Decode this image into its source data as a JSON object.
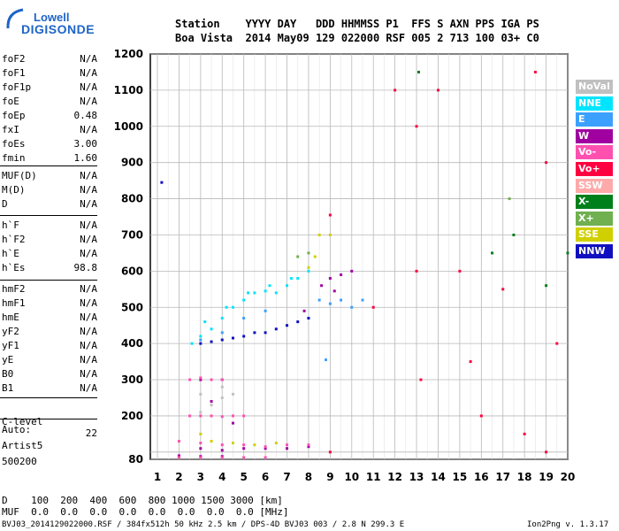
{
  "logo": {
    "line1": "Lowell",
    "line2": "DIGISONDE"
  },
  "header": {
    "row1": "Station    YYYY DAY   DDD HHMMSS P1  FFS S AXN PPS IGA PS",
    "row2": "Boa Vista  2014 May09 129 022000 RSF 005 2 713 100 03+ C0"
  },
  "params_group1": [
    {
      "name": "foF2",
      "value": "N/A"
    },
    {
      "name": "foF1",
      "value": "N/A"
    },
    {
      "name": "foF1p",
      "value": "N/A"
    },
    {
      "name": "foE",
      "value": "N/A"
    },
    {
      "name": "foEp",
      "value": "0.48"
    },
    {
      "name": "fxI",
      "value": "N/A"
    },
    {
      "name": "foEs",
      "value": "3.00"
    },
    {
      "name": "fmin",
      "value": "1.60"
    }
  ],
  "params_group2": [
    {
      "name": "MUF(D)",
      "value": "N/A"
    },
    {
      "name": "M(D)",
      "value": "N/A"
    },
    {
      "name": "D",
      "value": "N/A"
    }
  ],
  "params_group3": [
    {
      "name": "h`F",
      "value": "N/A"
    },
    {
      "name": "h`F2",
      "value": "N/A"
    },
    {
      "name": "h`E",
      "value": "N/A"
    },
    {
      "name": "h`Es",
      "value": "98.8"
    }
  ],
  "params_group4": [
    {
      "name": "hmF2",
      "value": "N/A"
    },
    {
      "name": "hmF1",
      "value": "N/A"
    },
    {
      "name": "hmE",
      "value": "N/A"
    },
    {
      "name": "yF2",
      "value": "N/A"
    },
    {
      "name": "yF1",
      "value": "N/A"
    },
    {
      "name": "yE",
      "value": "N/A"
    },
    {
      "name": "B0",
      "value": "N/A"
    },
    {
      "name": "B1",
      "value": "N/A"
    }
  ],
  "clevel": {
    "name": "C-level",
    "value": "22"
  },
  "auto": {
    "line1": "Auto:",
    "line2": "Artist5",
    "line3": "500200"
  },
  "legend": [
    {
      "label": "NoVal",
      "color": "#c0c0c0"
    },
    {
      "label": "NNE",
      "color": "#00e5ff"
    },
    {
      "label": "E",
      "color": "#3ca0ff"
    },
    {
      "label": "W",
      "color": "#a000a0"
    },
    {
      "label": "Vo-",
      "color": "#ff50b0"
    },
    {
      "label": "Vo+",
      "color": "#ff0040"
    },
    {
      "label": "SSW",
      "color": "#ffaaaa"
    },
    {
      "label": "X-",
      "color": "#00801a"
    },
    {
      "label": "X+",
      "color": "#70b050"
    },
    {
      "label": "SSE",
      "color": "#d0d000"
    },
    {
      "label": "NNW",
      "color": "#1010c0"
    }
  ],
  "muf_table": {
    "row1": "D    100  200  400  600  800 1000 1500 3000 [km]",
    "row2": "MUF  0.0  0.0  0.0  0.0  0.0  0.0  0.0  0.0 [MHz]"
  },
  "footer": {
    "left": "BVJ03_2014129022000.RSF / 384fx512h 50 kHz 2.5 km / DPS-4D BVJ03 003 / 2.8 N 299.3 E",
    "right": "Ion2Png v. 1.3.17"
  },
  "chart_data": {
    "type": "scatter",
    "title": "",
    "xlabel": "",
    "ylabel": "",
    "xlim": [
      1,
      20
    ],
    "ylim": [
      80,
      1200
    ],
    "x_ticks": [
      1,
      2,
      3,
      4,
      5,
      6,
      7,
      8,
      9,
      10,
      11,
      12,
      13,
      14,
      15,
      16,
      17,
      18,
      19,
      20
    ],
    "y_ticks": [
      80,
      100,
      200,
      300,
      400,
      500,
      600,
      700,
      800,
      900,
      1000,
      1100,
      1200
    ],
    "y_tick_labels": [
      "80",
      "",
      "200",
      "300",
      "400",
      "500",
      "600",
      "700",
      "800",
      "900",
      "1000",
      "1100",
      "1200"
    ],
    "grid": true,
    "series": [
      {
        "name": "NNE",
        "color": "#00e5ff",
        "points": [
          [
            3.0,
            420
          ],
          [
            3.5,
            440
          ],
          [
            4.0,
            470
          ],
          [
            4.5,
            500
          ],
          [
            5.0,
            520
          ],
          [
            5.5,
            540
          ],
          [
            6.0,
            545
          ],
          [
            6.5,
            540
          ],
          [
            7.0,
            560
          ],
          [
            7.5,
            580
          ],
          [
            8.0,
            600
          ],
          [
            3.2,
            460
          ],
          [
            4.2,
            500
          ],
          [
            5.2,
            540
          ],
          [
            6.2,
            560
          ],
          [
            7.2,
            580
          ],
          [
            2.6,
            400
          ]
        ]
      },
      {
        "name": "E",
        "color": "#3ca0ff",
        "points": [
          [
            8.5,
            520
          ],
          [
            9.0,
            510
          ],
          [
            9.5,
            520
          ],
          [
            10.0,
            500
          ],
          [
            10.5,
            520
          ],
          [
            8.8,
            355
          ],
          [
            3.0,
            410
          ],
          [
            4.0,
            430
          ],
          [
            5.0,
            470
          ],
          [
            6.0,
            490
          ]
        ]
      },
      {
        "name": "NNW",
        "color": "#1010c0",
        "points": [
          [
            3.0,
            400
          ],
          [
            3.5,
            405
          ],
          [
            4.0,
            410
          ],
          [
            4.5,
            415
          ],
          [
            5.0,
            420
          ],
          [
            5.5,
            430
          ],
          [
            6.0,
            430
          ],
          [
            6.5,
            440
          ],
          [
            7.0,
            450
          ],
          [
            7.5,
            460
          ],
          [
            8.0,
            470
          ],
          [
            1.2,
            845
          ]
        ]
      },
      {
        "name": "W",
        "color": "#a000a0",
        "points": [
          [
            8.6,
            560
          ],
          [
            9.0,
            580
          ],
          [
            9.5,
            590
          ],
          [
            10.0,
            600
          ],
          [
            9.2,
            545
          ],
          [
            7.8,
            490
          ],
          [
            3.0,
            300
          ],
          [
            4.0,
            300
          ],
          [
            3.5,
            240
          ],
          [
            4.5,
            180
          ],
          [
            3.0,
            110
          ],
          [
            4.0,
            105
          ],
          [
            5.0,
            110
          ],
          [
            6.0,
            110
          ],
          [
            7.0,
            110
          ],
          [
            8.0,
            115
          ],
          [
            2.0,
            90
          ],
          [
            3.0,
            88
          ],
          [
            4.0,
            88
          ]
        ]
      },
      {
        "name": "Vo-",
        "color": "#ff50b0",
        "points": [
          [
            2.5,
            300
          ],
          [
            3.0,
            305
          ],
          [
            3.5,
            300
          ],
          [
            4.0,
            300
          ],
          [
            2.5,
            200
          ],
          [
            3.0,
            200
          ],
          [
            3.5,
            200
          ],
          [
            4.0,
            198
          ],
          [
            4.5,
            200
          ],
          [
            5.0,
            200
          ],
          [
            2.0,
            130
          ],
          [
            3.0,
            125
          ],
          [
            4.0,
            120
          ],
          [
            5.0,
            120
          ],
          [
            6.0,
            115
          ],
          [
            7.0,
            120
          ],
          [
            8.0,
            120
          ],
          [
            2.0,
            85
          ],
          [
            3.0,
            85
          ],
          [
            4.0,
            85
          ],
          [
            5.0,
            85
          ],
          [
            6.0,
            85
          ]
        ]
      },
      {
        "name": "Vo+",
        "color": "#ff0040",
        "points": [
          [
            9.0,
            755
          ],
          [
            9.0,
            100
          ],
          [
            13.0,
            1000
          ],
          [
            13.0,
            600
          ],
          [
            13.2,
            300
          ],
          [
            14.0,
            1100
          ],
          [
            15.0,
            600
          ],
          [
            17.0,
            550
          ],
          [
            18.5,
            1150
          ],
          [
            19.0,
            900
          ],
          [
            19.5,
            400
          ],
          [
            12.0,
            1100
          ],
          [
            11.0,
            500
          ],
          [
            15.5,
            350
          ],
          [
            16.0,
            200
          ],
          [
            18.0,
            150
          ],
          [
            19.0,
            100
          ]
        ]
      },
      {
        "name": "X-",
        "color": "#00801a",
        "points": [
          [
            13.1,
            1150
          ],
          [
            16.5,
            650
          ],
          [
            17.5,
            700
          ],
          [
            19.0,
            560
          ],
          [
            20.0,
            650
          ]
        ]
      },
      {
        "name": "X+",
        "color": "#70b050",
        "points": [
          [
            8.0,
            650
          ],
          [
            7.5,
            640
          ],
          [
            17.3,
            800
          ]
        ]
      },
      {
        "name": "SSE",
        "color": "#d0d000",
        "points": [
          [
            8.3,
            640
          ],
          [
            8.5,
            700
          ],
          [
            9.0,
            700
          ],
          [
            8.0,
            610
          ],
          [
            3.5,
            130
          ],
          [
            4.5,
            125
          ],
          [
            5.5,
            120
          ],
          [
            6.5,
            125
          ],
          [
            3.0,
            150
          ]
        ]
      },
      {
        "name": "NoVal",
        "color": "#c0c0c0",
        "points": [
          [
            3.0,
            210
          ],
          [
            3.5,
            230
          ],
          [
            4.0,
            250
          ],
          [
            4.5,
            260
          ],
          [
            3.0,
            260
          ],
          [
            4.0,
            280
          ]
        ]
      }
    ]
  }
}
